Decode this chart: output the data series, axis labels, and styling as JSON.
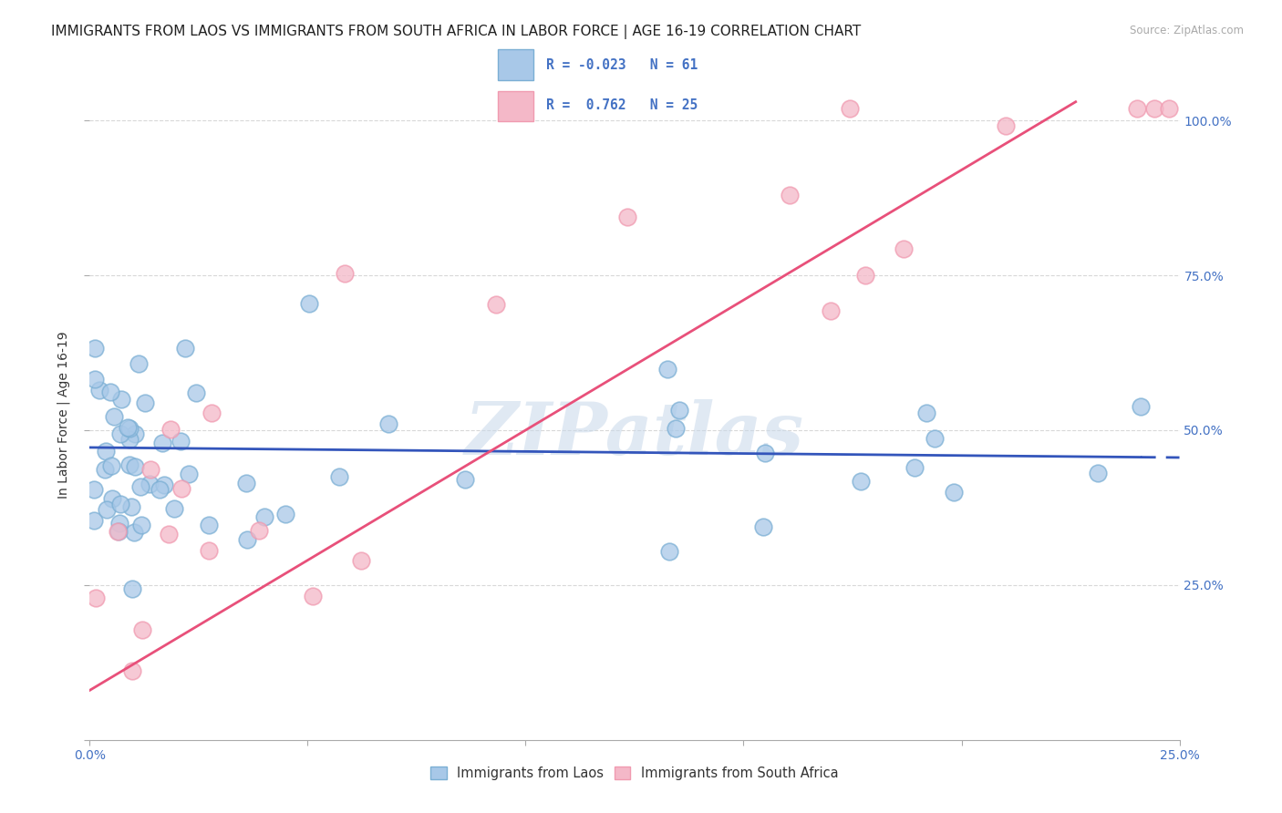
{
  "title": "IMMIGRANTS FROM LAOS VS IMMIGRANTS FROM SOUTH AFRICA IN LABOR FORCE | AGE 16-19 CORRELATION CHART",
  "source": "Source: ZipAtlas.com",
  "ylabel": "In Labor Force | Age 16-19",
  "xlim": [
    0.0,
    0.25
  ],
  "ylim": [
    0.0,
    1.05
  ],
  "series_laos": {
    "label": "Immigrants from Laos",
    "color": "#a8c8e8",
    "marker_color": "#7bafd4",
    "R": -0.023,
    "N": 61
  },
  "series_sa": {
    "label": "Immigrants from South Africa",
    "color": "#f4b8c8",
    "marker_color": "#f09ab0",
    "R": 0.762,
    "N": 25
  },
  "legend_R_laos": "-0.023",
  "legend_N_laos": "61",
  "legend_R_sa": " 0.762",
  "legend_N_sa": "25",
  "watermark": "ZIPatlas",
  "watermark_color": "#c8d8ea",
  "bg_color": "#ffffff",
  "grid_color": "#d8d8d8",
  "title_fontsize": 11,
  "axis_fontsize": 10,
  "tick_fontsize": 10,
  "blue_line_color": "#3355bb",
  "pink_line_color": "#e8507a"
}
